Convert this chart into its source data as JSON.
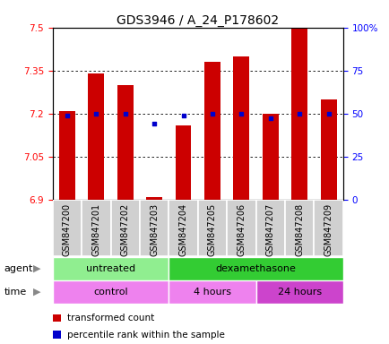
{
  "title": "GDS3946 / A_24_P178602",
  "samples": [
    "GSM847200",
    "GSM847201",
    "GSM847202",
    "GSM847203",
    "GSM847204",
    "GSM847205",
    "GSM847206",
    "GSM847207",
    "GSM847208",
    "GSM847209"
  ],
  "transformed_count": [
    7.21,
    7.34,
    7.3,
    6.91,
    7.16,
    7.38,
    7.4,
    7.2,
    7.5,
    7.25
  ],
  "percentile_rank": [
    49,
    50,
    50,
    44,
    49,
    50,
    50,
    47,
    50,
    50
  ],
  "ylim_left": [
    6.9,
    7.5
  ],
  "ylim_right": [
    0,
    100
  ],
  "yticks_left": [
    6.9,
    7.05,
    7.2,
    7.35,
    7.5
  ],
  "yticks_right": [
    0,
    25,
    50,
    75,
    100
  ],
  "ytick_labels_left": [
    "6.9",
    "7.05",
    "7.2",
    "7.35",
    "7.5"
  ],
  "ytick_labels_right": [
    "0",
    "25",
    "50",
    "75",
    "100%"
  ],
  "bar_color": "#cc0000",
  "dot_color": "#0000cc",
  "bar_bottom": 6.9,
  "agent_groups": [
    {
      "label": "untreated",
      "start": 0,
      "end": 4,
      "color": "#90ee90"
    },
    {
      "label": "dexamethasone",
      "start": 4,
      "end": 10,
      "color": "#33cc33"
    }
  ],
  "time_groups": [
    {
      "label": "control",
      "start": 0,
      "end": 4,
      "color": "#ee82ee"
    },
    {
      "label": "4 hours",
      "start": 4,
      "end": 7,
      "color": "#ee82ee"
    },
    {
      "label": "24 hours",
      "start": 7,
      "end": 10,
      "color": "#cc44cc"
    }
  ],
  "legend_items": [
    {
      "label": "transformed count",
      "color": "#cc0000"
    },
    {
      "label": "percentile rank within the sample",
      "color": "#0000cc"
    }
  ],
  "bg_color": "#ffffff",
  "title_fontsize": 10,
  "tick_fontsize": 7.5,
  "sample_fontsize": 7,
  "row_fontsize": 8
}
